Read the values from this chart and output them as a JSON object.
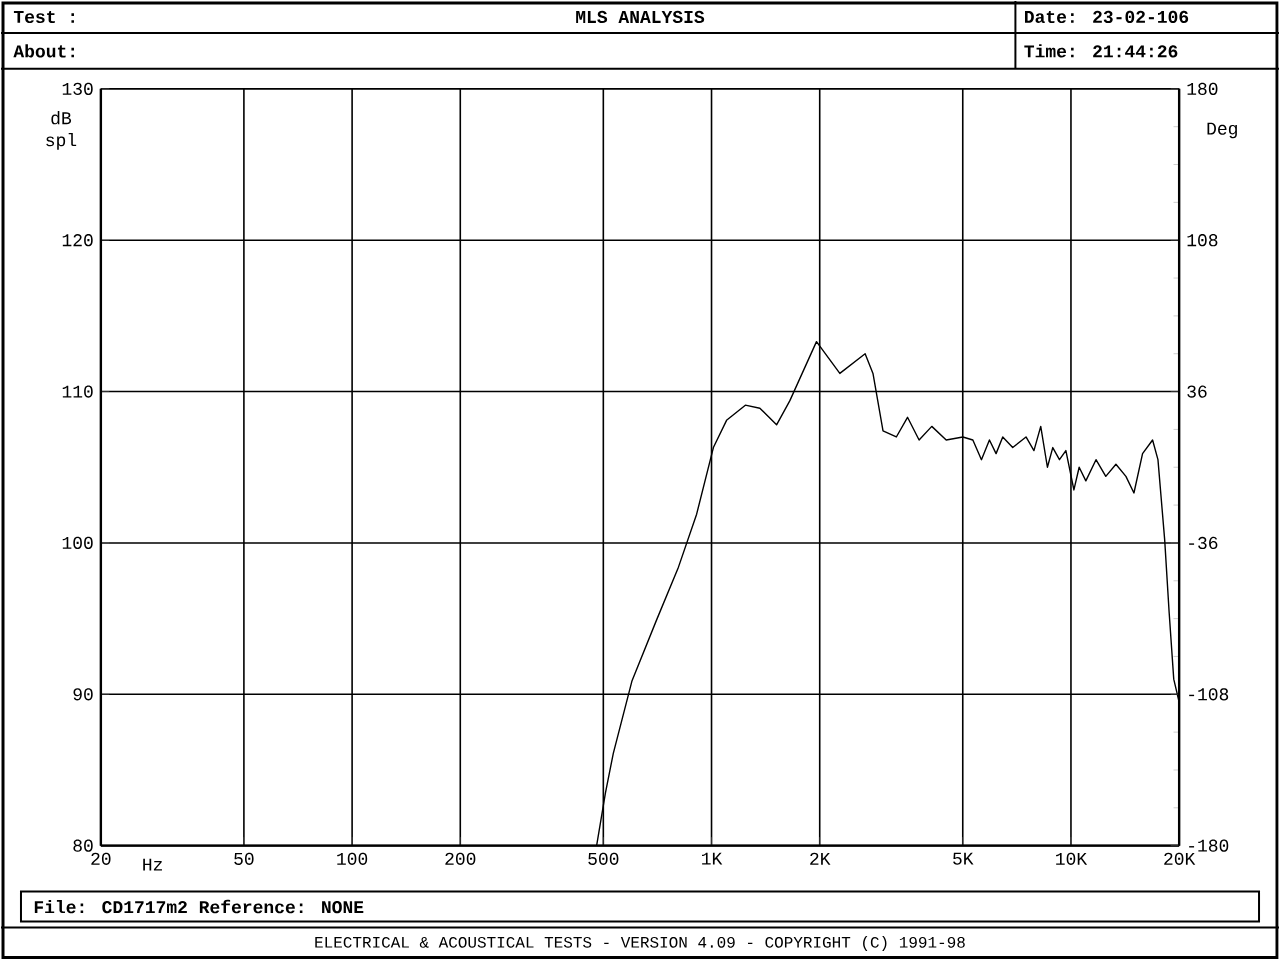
{
  "chart_data": {
    "type": "line",
    "title": "MLS ANALYSIS",
    "xlabel": "Hz",
    "ylabel": "dB spl",
    "y2label": "Deg",
    "annotations": [
      "Test :",
      "About:",
      "Date: 23-02-106",
      "Time: 21:44:26",
      "File: CD1717m2 Reference: NONE",
      "ELECTRICAL & ACOUSTICAL TESTS - VERSION 4.09 - COPYRIGHT (C) 1991-98"
    ],
    "log": "x",
    "grid": true,
    "marker": "none",
    "line_style": "solid",
    "xlim": [
      20,
      20000
    ],
    "ylim": [
      80,
      130
    ],
    "y2lim": [
      -180,
      180
    ],
    "xticks": [
      20,
      50,
      100,
      200,
      500,
      {
        "value": 1000,
        "label": "1K"
      },
      {
        "value": 2000,
        "label": "2K"
      },
      {
        "value": 5000,
        "label": "5K"
      },
      {
        "value": 10000,
        "label": "10K"
      },
      {
        "value": 20000,
        "label": "20K"
      }
    ],
    "yticks": [
      80,
      90,
      100,
      110,
      120,
      130
    ],
    "y2ticks": [
      -180,
      -108,
      -36,
      36,
      108,
      180
    ],
    "series": [
      {
        "color": "#000000",
        "x": [
          479,
          507,
          533,
          601,
          703,
          809,
          909,
          1012,
          1101,
          1242,
          1363,
          1517,
          1652,
          1959,
          2275,
          2675,
          2813,
          3000,
          3267,
          3510,
          3780,
          4100,
          4497,
          5003,
          5334,
          5636,
          5932,
          6190,
          6460,
          6886,
          7500,
          7890,
          8240,
          8600,
          8900,
          9290,
          9680,
          10190,
          10540,
          11000,
          11740,
          12500,
          13340,
          14220,
          14970,
          15820,
          16870,
          17460,
          18230,
          18760,
          19320,
          19950,
          20000
        ],
        "values": [
          80,
          83.5,
          86.1,
          90.9,
          94.9,
          98.4,
          101.9,
          106.3,
          108.1,
          109.1,
          108.9,
          107.8,
          109.4,
          113.3,
          111.2,
          112.5,
          111.2,
          107.4,
          107.0,
          108.3,
          106.8,
          107.7,
          106.8,
          107.0,
          106.8,
          105.5,
          106.8,
          105.9,
          107.0,
          106.3,
          107.0,
          106.1,
          107.7,
          105.0,
          106.3,
          105.5,
          106.1,
          103.5,
          105.0,
          104.1,
          105.5,
          104.4,
          105.2,
          104.4,
          103.3,
          105.9,
          106.8,
          105.5,
          100.2,
          95.4,
          91.0,
          89.6,
          86.6
        ]
      }
    ]
  }
}
